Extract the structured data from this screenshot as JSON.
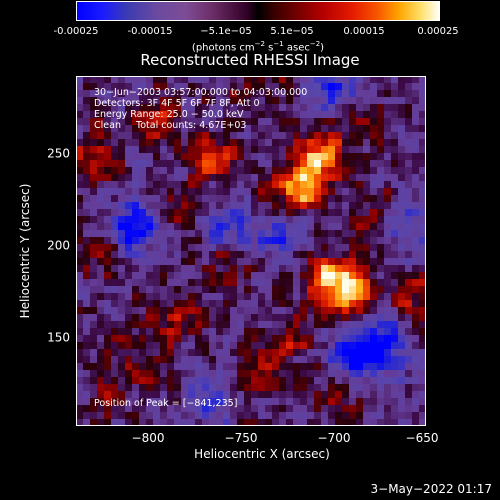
{
  "colorbar": {
    "ticks": [
      "-0.00025",
      "-0.00015",
      "−5.1e−05",
      "5.1e−05",
      "0.00015",
      "0.00025"
    ],
    "tick_values": [
      -0.00025,
      -0.00015,
      -5.1e-05,
      5.1e-05,
      0.00015,
      0.00025
    ],
    "range": [
      -0.00029,
      0.00029
    ],
    "units_prefix": "(photons cm",
    "units_cm_exp": "−2",
    "units_s": " s",
    "units_s_exp": "−1",
    "units_asec": " asec",
    "units_asec_exp": "−2",
    "units_suffix": ")"
  },
  "title": "Reconstructed RHESSI Image",
  "annotations": {
    "time": "30−Jun−2003 03:57:00.000 to 04:03:00.000",
    "detectors": "Detectors: 3F 4F 5F 6F 7F 8F, Att 0",
    "energy": "Energy Range: 25.0 − 50.0 keV",
    "clean": "Clean     Total counts: 4.67E+03",
    "peak": "Position of Peak = [−841,235]"
  },
  "axes": {
    "xlabel": "Heliocentric X (arcsec)",
    "ylabel": "Heliocentric Y (arcsec)",
    "xticks": [
      "−800",
      "−750",
      "−700",
      "−650"
    ],
    "yticks": [
      "250",
      "200",
      "150"
    ],
    "xlim": [
      -845,
      -650
    ],
    "ylim": [
      100,
      295
    ]
  },
  "chart_data": {
    "type": "heatmap",
    "title": "Reconstructed RHESSI Image",
    "xlabel": "Heliocentric X (arcsec)",
    "ylabel": "Heliocentric Y (arcsec)",
    "xlim": [
      -845,
      -650
    ],
    "ylim": [
      100,
      295
    ],
    "colormap": "blue-purple-black-red-yellow-white",
    "value_range": [
      -0.00029,
      0.00029
    ],
    "peak_position": [
      -841,
      235
    ],
    "sources": [
      {
        "x": -710,
        "y": 250,
        "level": 0.95
      },
      {
        "x": -722,
        "y": 230,
        "level": 0.85
      },
      {
        "x": -705,
        "y": 182,
        "level": 0.95
      },
      {
        "x": -690,
        "y": 175,
        "level": 0.75
      },
      {
        "x": -770,
        "y": 250,
        "level": 0.55
      },
      {
        "x": -840,
        "y": 250,
        "level": 0.55
      },
      {
        "x": -800,
        "y": 270,
        "level": 0.5
      },
      {
        "x": -790,
        "y": 160,
        "level": 0.45
      },
      {
        "x": -830,
        "y": 195,
        "level": 0.35
      },
      {
        "x": -690,
        "y": 275,
        "level": 0.4
      },
      {
        "x": -655,
        "y": 170,
        "level": 0.35
      },
      {
        "x": -760,
        "y": 190,
        "level": 0.3
      },
      {
        "x": -810,
        "y": 135,
        "level": 0.35
      },
      {
        "x": -740,
        "y": 135,
        "level": 0.3
      },
      {
        "x": -700,
        "y": 115,
        "level": 0.3
      },
      {
        "x": -680,
        "y": 215,
        "level": 0.35
      },
      {
        "x": -745,
        "y": 285,
        "level": 0.3
      },
      {
        "x": -790,
        "y": 220,
        "level": 0.3
      },
      {
        "x": -725,
        "y": 150,
        "level": 0.3
      },
      {
        "x": -830,
        "y": 115,
        "level": 0.25
      }
    ],
    "negative_regions": [
      {
        "x": -812,
        "y": 210,
        "level": -0.9
      },
      {
        "x": -690,
        "y": 140,
        "level": -0.8
      },
      {
        "x": -675,
        "y": 145,
        "level": -0.75
      },
      {
        "x": -700,
        "y": 285,
        "level": -0.7
      },
      {
        "x": -730,
        "y": 205,
        "level": -0.55
      },
      {
        "x": -660,
        "y": 210,
        "level": -0.5
      },
      {
        "x": -770,
        "y": 115,
        "level": -0.45
      },
      {
        "x": -760,
        "y": 210,
        "level": -0.5
      }
    ]
  },
  "footer": {
    "date": "3−May−2022 01:17"
  }
}
